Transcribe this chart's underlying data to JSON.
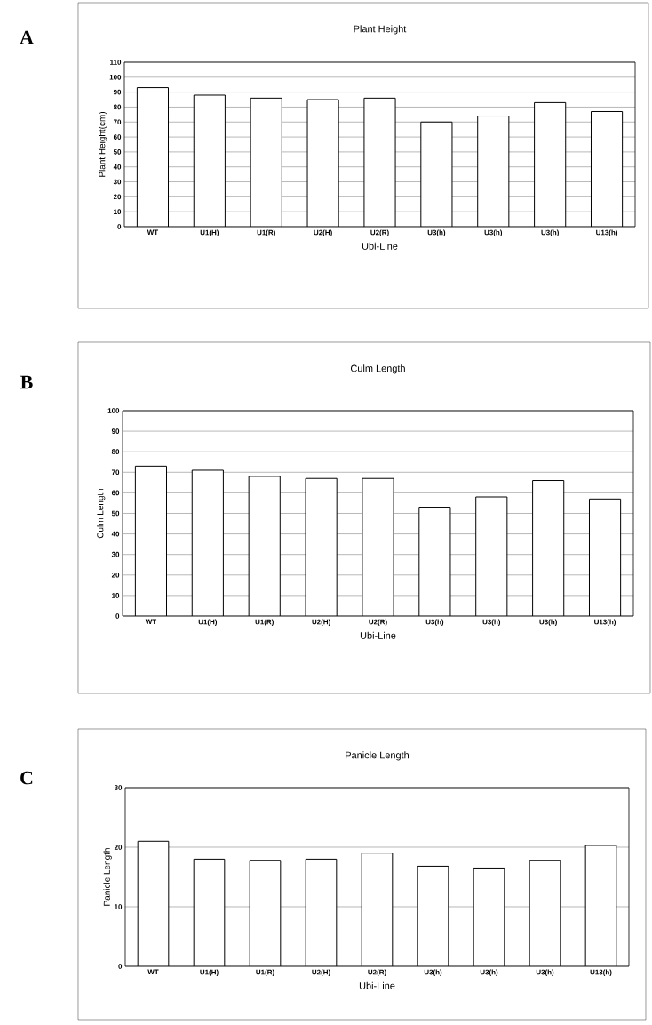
{
  "chart_data": [
    {
      "type": "bar",
      "title": "Plant Height",
      "xlabel": "Ubi-Line",
      "ylabel": "Plant Height(cm)",
      "annotations": [
        "A"
      ],
      "categories": [
        "WT",
        "U1(H)",
        "U1(R)",
        "U2(H)",
        "U2(R)",
        "U3(h)",
        "U3(h)",
        "U3(h)",
        "U13(h)"
      ],
      "values": [
        93,
        88,
        86,
        85,
        86,
        70,
        74,
        83,
        77
      ],
      "color": "#ffffff",
      "ylim": [
        0,
        110
      ],
      "yticks": [
        0,
        10,
        20,
        30,
        40,
        50,
        60,
        70,
        80,
        90,
        100,
        110
      ],
      "grid": "y"
    },
    {
      "type": "bar",
      "title": "Culm Length",
      "xlabel": "Ubi-Line",
      "ylabel": "Culm Length",
      "annotations": [
        "B"
      ],
      "categories": [
        "WT",
        "U1(H)",
        "U1(R)",
        "U2(H)",
        "U2(R)",
        "U3(h)",
        "U3(h)",
        "U3(h)",
        "U13(h)"
      ],
      "values": [
        73,
        71,
        68,
        67,
        67,
        53,
        58,
        66,
        57
      ],
      "color": "#ffffff",
      "ylim": [
        0,
        100
      ],
      "yticks": [
        0,
        10,
        20,
        30,
        40,
        50,
        60,
        70,
        80,
        90,
        100
      ],
      "grid": "y"
    },
    {
      "type": "bar",
      "title": "Panicle Length",
      "xlabel": "Ubi-Line",
      "ylabel": "Panicle Length",
      "annotations": [
        "C"
      ],
      "categories": [
        "WT",
        "U1(H)",
        "U1(R)",
        "U2(H)",
        "U2(R)",
        "U3(h)",
        "U3(h)",
        "U3(h)",
        "U13(h)"
      ],
      "values": [
        21,
        18,
        17.8,
        18,
        19,
        16.8,
        16.5,
        17.8,
        20.3
      ],
      "color": "#ffffff",
      "ylim": [
        0,
        30
      ],
      "yticks": [
        0,
        10,
        20,
        30
      ],
      "grid": "y"
    }
  ]
}
